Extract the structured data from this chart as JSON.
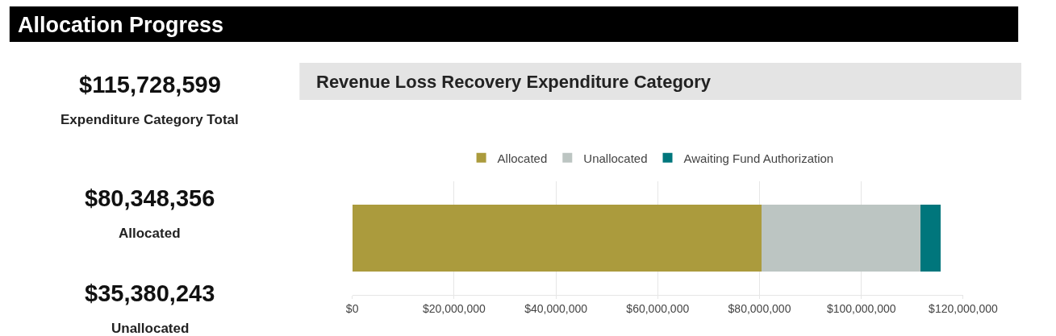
{
  "chart_data": {
    "type": "bar",
    "orientation": "horizontal",
    "stacked": true,
    "title": "Allocation Progress",
    "subtitle": "Revenue Loss Recovery Expenditure Category",
    "annotations": [
      "$115,728,599",
      "Expenditure Category Total",
      "$80,348,356",
      "Allocated",
      "$35,380,243",
      "Unallocated"
    ],
    "categories": [
      null
    ],
    "series": [
      {
        "name": "Allocated",
        "color": "#ab9b3d",
        "values": [
          80348356
        ]
      },
      {
        "name": "Unallocated",
        "color": "#bcc5c2",
        "values": [
          31300000
        ]
      },
      {
        "name": "Awaiting Fund Authorization",
        "color": "#00767c",
        "values": [
          4000000
        ]
      }
    ],
    "xlim": [
      0,
      120000000
    ],
    "xticks": [
      {
        "value": 0,
        "label": "$0"
      },
      {
        "value": 20000000,
        "label": "$20,000,000"
      },
      {
        "value": 40000000,
        "label": "$40,000,000"
      },
      {
        "value": 60000000,
        "label": "$60,000,000"
      },
      {
        "value": 80000000,
        "label": "$80,000,000"
      },
      {
        "value": 100000000,
        "label": "$100,000,000"
      },
      {
        "value": 120000000,
        "label": "$120,000,000"
      }
    ],
    "grid": "x",
    "legend": "top",
    "tick_labels": "x"
  }
}
